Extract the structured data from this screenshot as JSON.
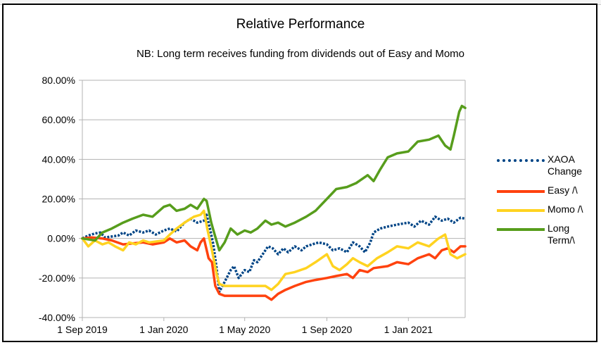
{
  "chart_data": {
    "type": "line",
    "title": "Relative Performance",
    "subtitle": "NB: Long term receives funding from dividends out of Easy and Momo",
    "xlabel": "",
    "ylabel": "",
    "x_ticks": [
      "1 Sep 2019",
      "1 Jan 2020",
      "1 May 2020",
      "1 Sep 2020",
      "1 Jan 2021"
    ],
    "x_tick_dates": [
      "2019-09-01",
      "2020-01-01",
      "2020-05-01",
      "2020-09-01",
      "2021-01-01"
    ],
    "xlim": [
      "2019-09-01",
      "2021-03-27"
    ],
    "y_ticks": [
      "80.00%",
      "60.00%",
      "40.00%",
      "20.00%",
      "0.00%",
      "-20.00%",
      "-40.00%"
    ],
    "y_tick_values": [
      80,
      60,
      40,
      20,
      0,
      -20,
      -40
    ],
    "ylim": [
      -40,
      80
    ],
    "y_unit": "%",
    "grid": "horizontal",
    "legend_position": "right",
    "series": [
      {
        "name": "XAOA Change",
        "color": "#004586",
        "style": "dotted",
        "points": [
          [
            "2019-09-01",
            0
          ],
          [
            "2019-09-10",
            1.5
          ],
          [
            "2019-09-20",
            2.5
          ],
          [
            "2019-09-28",
            3
          ],
          [
            "2019-10-05",
            0.5
          ],
          [
            "2019-10-15",
            1
          ],
          [
            "2019-10-25",
            1.5
          ],
          [
            "2019-11-01",
            3
          ],
          [
            "2019-11-10",
            1.5
          ],
          [
            "2019-11-20",
            4
          ],
          [
            "2019-12-01",
            3
          ],
          [
            "2019-12-10",
            4
          ],
          [
            "2019-12-20",
            2
          ],
          [
            "2020-01-01",
            4
          ],
          [
            "2020-01-10",
            5
          ],
          [
            "2020-01-20",
            3.5
          ],
          [
            "2020-02-01",
            8
          ],
          [
            "2020-02-10",
            10
          ],
          [
            "2020-02-20",
            8
          ],
          [
            "2020-03-01",
            9
          ],
          [
            "2020-03-05",
            12
          ],
          [
            "2020-03-10",
            5
          ],
          [
            "2020-03-15",
            -3
          ],
          [
            "2020-03-20",
            -15
          ],
          [
            "2020-03-24",
            -27
          ],
          [
            "2020-04-01",
            -22
          ],
          [
            "2020-04-10",
            -16
          ],
          [
            "2020-04-15",
            -14
          ],
          [
            "2020-04-22",
            -20
          ],
          [
            "2020-05-01",
            -16
          ],
          [
            "2020-05-08",
            -17
          ],
          [
            "2020-05-15",
            -11
          ],
          [
            "2020-05-20",
            -12
          ],
          [
            "2020-05-28",
            -8
          ],
          [
            "2020-06-05",
            -4
          ],
          [
            "2020-06-12",
            -5
          ],
          [
            "2020-06-20",
            -8
          ],
          [
            "2020-06-28",
            -5
          ],
          [
            "2020-07-05",
            -7
          ],
          [
            "2020-07-15",
            -4
          ],
          [
            "2020-07-25",
            -6
          ],
          [
            "2020-08-01",
            -4
          ],
          [
            "2020-08-10",
            -3
          ],
          [
            "2020-08-20",
            -2
          ],
          [
            "2020-09-01",
            -3
          ],
          [
            "2020-09-10",
            -6
          ],
          [
            "2020-09-20",
            -5
          ],
          [
            "2020-10-01",
            -7
          ],
          [
            "2020-10-10",
            -2
          ],
          [
            "2020-10-20",
            -4
          ],
          [
            "2020-10-28",
            -7
          ],
          [
            "2020-11-05",
            -2
          ],
          [
            "2020-11-10",
            3
          ],
          [
            "2020-11-20",
            5
          ],
          [
            "2020-12-01",
            6
          ],
          [
            "2020-12-15",
            7
          ],
          [
            "2021-01-01",
            8
          ],
          [
            "2021-01-10",
            6
          ],
          [
            "2021-01-20",
            9
          ],
          [
            "2021-02-01",
            7
          ],
          [
            "2021-02-10",
            11
          ],
          [
            "2021-02-20",
            9
          ],
          [
            "2021-03-01",
            10
          ],
          [
            "2021-03-10",
            8
          ],
          [
            "2021-03-20",
            10.5
          ],
          [
            "2021-03-27",
            10
          ]
        ]
      },
      {
        "name": "Easy /\\",
        "color": "#ff420e",
        "style": "solid",
        "points": [
          [
            "2019-09-01",
            0
          ],
          [
            "2019-09-15",
            0.5
          ],
          [
            "2019-10-01",
            0
          ],
          [
            "2019-10-15",
            -1
          ],
          [
            "2019-11-01",
            -3
          ],
          [
            "2019-11-15",
            -2.5
          ],
          [
            "2019-12-01",
            -2
          ],
          [
            "2019-12-15",
            -3
          ],
          [
            "2020-01-01",
            -2
          ],
          [
            "2020-01-10",
            0
          ],
          [
            "2020-01-20",
            -2
          ],
          [
            "2020-02-01",
            -1
          ],
          [
            "2020-02-10",
            -4
          ],
          [
            "2020-02-20",
            -6
          ],
          [
            "2020-02-25",
            -2
          ],
          [
            "2020-03-01",
            0
          ],
          [
            "2020-03-08",
            -10
          ],
          [
            "2020-03-13",
            -12
          ],
          [
            "2020-03-18",
            -24
          ],
          [
            "2020-03-24",
            -28
          ],
          [
            "2020-04-01",
            -29
          ],
          [
            "2020-05-01",
            -29
          ],
          [
            "2020-06-01",
            -29
          ],
          [
            "2020-06-10",
            -31
          ],
          [
            "2020-06-20",
            -28
          ],
          [
            "2020-07-01",
            -26
          ],
          [
            "2020-07-15",
            -24
          ],
          [
            "2020-08-01",
            -22
          ],
          [
            "2020-08-15",
            -21
          ],
          [
            "2020-09-01",
            -20
          ],
          [
            "2020-09-15",
            -19
          ],
          [
            "2020-10-01",
            -18
          ],
          [
            "2020-10-10",
            -20
          ],
          [
            "2020-10-20",
            -16
          ],
          [
            "2020-11-01",
            -17
          ],
          [
            "2020-11-10",
            -15
          ],
          [
            "2020-12-01",
            -14
          ],
          [
            "2020-12-15",
            -12
          ],
          [
            "2021-01-01",
            -13
          ],
          [
            "2021-01-15",
            -10
          ],
          [
            "2021-02-01",
            -8
          ],
          [
            "2021-02-10",
            -10
          ],
          [
            "2021-02-20",
            -6
          ],
          [
            "2021-03-01",
            -5
          ],
          [
            "2021-03-10",
            -7
          ],
          [
            "2021-03-20",
            -4
          ],
          [
            "2021-03-27",
            -4
          ]
        ]
      },
      {
        "name": "Momo /\\",
        "color": "#ffd320",
        "style": "solid",
        "points": [
          [
            "2019-09-01",
            0
          ],
          [
            "2019-09-10",
            -4
          ],
          [
            "2019-09-20",
            -1
          ],
          [
            "2019-10-01",
            -3
          ],
          [
            "2019-10-10",
            -2
          ],
          [
            "2019-10-20",
            -4
          ],
          [
            "2019-11-01",
            -6
          ],
          [
            "2019-11-10",
            -2
          ],
          [
            "2019-11-20",
            -3
          ],
          [
            "2019-12-01",
            -1
          ],
          [
            "2019-12-10",
            -2
          ],
          [
            "2020-01-01",
            -1
          ],
          [
            "2020-01-10",
            2
          ],
          [
            "2020-01-20",
            5
          ],
          [
            "2020-02-01",
            8
          ],
          [
            "2020-02-15",
            11
          ],
          [
            "2020-02-25",
            12
          ],
          [
            "2020-03-01",
            14
          ],
          [
            "2020-03-06",
            5
          ],
          [
            "2020-03-13",
            -6
          ],
          [
            "2020-03-20",
            -18
          ],
          [
            "2020-03-24",
            -23
          ],
          [
            "2020-04-01",
            -24
          ],
          [
            "2020-05-01",
            -24
          ],
          [
            "2020-06-01",
            -24
          ],
          [
            "2020-06-10",
            -26
          ],
          [
            "2020-06-20",
            -23
          ],
          [
            "2020-07-01",
            -18
          ],
          [
            "2020-07-15",
            -17
          ],
          [
            "2020-08-01",
            -15
          ],
          [
            "2020-08-15",
            -12
          ],
          [
            "2020-09-01",
            -8
          ],
          [
            "2020-09-10",
            -14
          ],
          [
            "2020-09-20",
            -16
          ],
          [
            "2020-10-01",
            -13
          ],
          [
            "2020-10-10",
            -10
          ],
          [
            "2020-10-20",
            -12
          ],
          [
            "2020-11-01",
            -14
          ],
          [
            "2020-11-15",
            -10
          ],
          [
            "2020-12-01",
            -7
          ],
          [
            "2020-12-15",
            -4
          ],
          [
            "2021-01-01",
            -5
          ],
          [
            "2021-01-15",
            -2
          ],
          [
            "2021-02-01",
            -4
          ],
          [
            "2021-02-15",
            0
          ],
          [
            "2021-02-25",
            2
          ],
          [
            "2021-03-05",
            -8
          ],
          [
            "2021-03-15",
            -10
          ],
          [
            "2021-03-27",
            -8
          ]
        ]
      },
      {
        "name": "Long Term/\\",
        "color": "#579d1c",
        "style": "solid",
        "points": [
          [
            "2019-09-01",
            0
          ],
          [
            "2019-09-20",
            -1
          ],
          [
            "2019-10-01",
            3
          ],
          [
            "2019-10-15",
            5
          ],
          [
            "2019-11-01",
            8
          ],
          [
            "2019-11-15",
            10
          ],
          [
            "2019-12-01",
            12
          ],
          [
            "2019-12-15",
            11
          ],
          [
            "2020-01-01",
            16
          ],
          [
            "2020-01-10",
            17
          ],
          [
            "2020-01-20",
            14
          ],
          [
            "2020-02-01",
            15
          ],
          [
            "2020-02-10",
            17
          ],
          [
            "2020-02-20",
            15
          ],
          [
            "2020-03-01",
            20
          ],
          [
            "2020-03-05",
            19
          ],
          [
            "2020-03-12",
            8
          ],
          [
            "2020-03-17",
            2
          ],
          [
            "2020-03-24",
            -6
          ],
          [
            "2020-04-01",
            -2
          ],
          [
            "2020-04-10",
            5
          ],
          [
            "2020-04-20",
            2
          ],
          [
            "2020-05-01",
            4
          ],
          [
            "2020-05-10",
            3
          ],
          [
            "2020-05-20",
            5
          ],
          [
            "2020-06-01",
            9
          ],
          [
            "2020-06-10",
            7
          ],
          [
            "2020-06-20",
            8
          ],
          [
            "2020-07-01",
            6
          ],
          [
            "2020-07-15",
            8
          ],
          [
            "2020-08-01",
            11
          ],
          [
            "2020-08-15",
            14
          ],
          [
            "2020-09-01",
            20
          ],
          [
            "2020-09-15",
            25
          ],
          [
            "2020-10-01",
            26
          ],
          [
            "2020-10-15",
            28
          ],
          [
            "2020-11-01",
            32
          ],
          [
            "2020-11-10",
            29
          ],
          [
            "2020-11-20",
            35
          ],
          [
            "2020-12-01",
            41
          ],
          [
            "2020-12-15",
            43
          ],
          [
            "2021-01-01",
            44
          ],
          [
            "2021-01-15",
            49
          ],
          [
            "2021-02-01",
            50
          ],
          [
            "2021-02-15",
            52
          ],
          [
            "2021-02-25",
            47
          ],
          [
            "2021-03-05",
            45
          ],
          [
            "2021-03-10",
            52
          ],
          [
            "2021-03-18",
            64
          ],
          [
            "2021-03-22",
            67
          ],
          [
            "2021-03-27",
            66
          ]
        ]
      }
    ]
  },
  "legend": [
    {
      "lines": [
        "XAOA",
        "Change"
      ]
    },
    {
      "lines": [
        "Easy /\\"
      ]
    },
    {
      "lines": [
        "Momo /\\"
      ]
    },
    {
      "lines": [
        "Long",
        "Term/\\"
      ]
    }
  ]
}
